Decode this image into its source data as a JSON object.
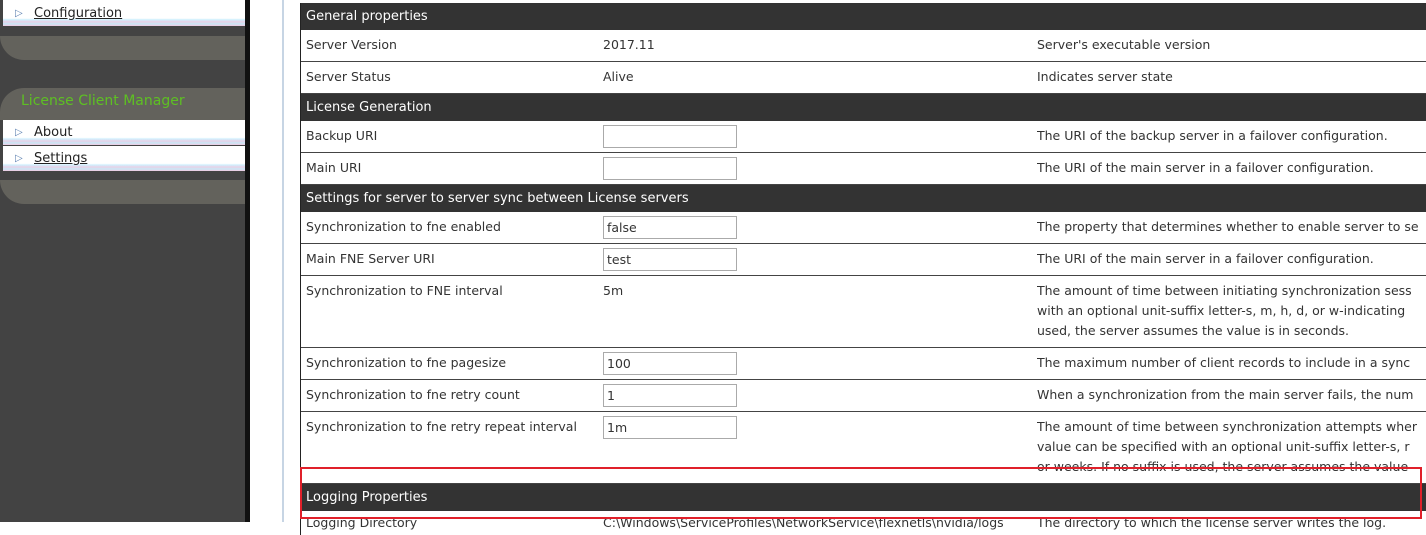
{
  "sidebar": {
    "config_item": "Configuration",
    "client_manager_title": "License Client Manager",
    "client_items": [
      {
        "label": "About"
      },
      {
        "label": "Settings"
      }
    ]
  },
  "colors": {
    "accent_green": "#5ec023",
    "header_bg": "#333333",
    "highlight_red": "#e0202a"
  },
  "sections": [
    {
      "title": "General properties",
      "rows": [
        {
          "label": "Server Version",
          "value": "2017.11",
          "desc": [
            "Server's executable version"
          ]
        },
        {
          "label": "Server Status",
          "value": "Alive",
          "desc": [
            "Indicates server state"
          ]
        }
      ]
    },
    {
      "title": "License Generation",
      "rows": [
        {
          "label": "Backup URI",
          "input": "",
          "desc": [
            "The URI of the backup server in a failover configuration."
          ]
        },
        {
          "label": "Main URI",
          "input": "",
          "desc": [
            "The URI of the main server in a failover configuration."
          ]
        }
      ]
    },
    {
      "title": "Settings for server to server sync between License servers",
      "rows": [
        {
          "label": "Synchronization to fne enabled",
          "input": "false",
          "desc": [
            "The property that determines whether to enable server to se"
          ]
        },
        {
          "label": "Main FNE Server URI",
          "input": "test",
          "desc": [
            "The URI of the main server in a failover configuration."
          ]
        },
        {
          "label": "Synchronization to FNE interval",
          "value": "5m",
          "desc": [
            "The amount of time between initiating synchronization sess",
            "with an optional unit-suffix letter-s, m, h, d, or w-indicating",
            "used, the server assumes the value is in seconds."
          ]
        },
        {
          "label": "Synchronization to fne pagesize",
          "input": "100",
          "desc": [
            "The maximum number of client records to include in a sync"
          ]
        },
        {
          "label": "Synchronization to fne retry count",
          "input": "1",
          "desc": [
            "When a synchronization from the main server fails, the num"
          ]
        },
        {
          "label": "Synchronization to fne retry repeat interval",
          "input": "1m",
          "desc": [
            "The amount of time between synchronization attempts wher",
            "value can be specified with an optional unit-suffix letter-s, r",
            "or weeks. If no suffix is used, the server assumes the value"
          ]
        }
      ]
    },
    {
      "title": "Logging Properties",
      "rows": [
        {
          "label": "Logging Directory",
          "value": "C:\\Windows\\ServiceProfiles\\NetworkService\\flexnetls\\nvidia/logs",
          "desc": [
            "The directory to which the license server writes the log."
          ]
        }
      ]
    }
  ]
}
